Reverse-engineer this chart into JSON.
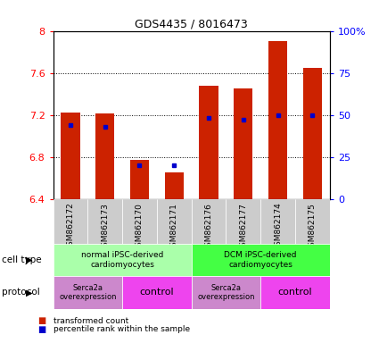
{
  "title": "GDS4435 / 8016473",
  "samples": [
    "GSM862172",
    "GSM862173",
    "GSM862170",
    "GSM862171",
    "GSM862176",
    "GSM862177",
    "GSM862174",
    "GSM862175"
  ],
  "bar_values": [
    7.22,
    7.21,
    6.77,
    6.65,
    7.48,
    7.45,
    7.9,
    7.65
  ],
  "percentile_values": [
    44,
    43,
    20,
    20,
    48,
    47,
    50,
    50
  ],
  "ylim": [
    6.4,
    8.0
  ],
  "yticks": [
    6.4,
    6.8,
    7.2,
    7.6,
    8.0
  ],
  "ytick_labels": [
    "6.4",
    "6.8",
    "7.2",
    "7.6",
    "8"
  ],
  "right_yticks": [
    0,
    25,
    50,
    75,
    100
  ],
  "right_ytick_labels": [
    "0",
    "25",
    "50",
    "75",
    "100%"
  ],
  "bar_color": "#cc2200",
  "dot_color": "#0000cc",
  "bar_bottom": 6.4,
  "cell_type_groups": [
    {
      "label": "normal iPSC-derived\ncardiomyocytes",
      "start": 0,
      "end": 3,
      "color": "#aaffaa"
    },
    {
      "label": "DCM iPSC-derived\ncardiomyocytes",
      "start": 4,
      "end": 7,
      "color": "#44ff44"
    }
  ],
  "protocol_groups": [
    {
      "label": "Serca2a\noverexpression",
      "start": 0,
      "end": 1,
      "color": "#cc88cc",
      "fontsize": 6
    },
    {
      "label": "control",
      "start": 2,
      "end": 3,
      "color": "#ee44ee",
      "fontsize": 8
    },
    {
      "label": "Serca2a\noverexpression",
      "start": 4,
      "end": 5,
      "color": "#cc88cc",
      "fontsize": 6
    },
    {
      "label": "control",
      "start": 6,
      "end": 7,
      "color": "#ee44ee",
      "fontsize": 8
    }
  ],
  "legend_items": [
    {
      "color": "#cc2200",
      "label": "transformed count"
    },
    {
      "color": "#0000cc",
      "label": "percentile rank within the sample"
    }
  ],
  "left_label_cell": "cell type",
  "left_label_prot": "protocol",
  "tick_bg_color": "#cccccc"
}
